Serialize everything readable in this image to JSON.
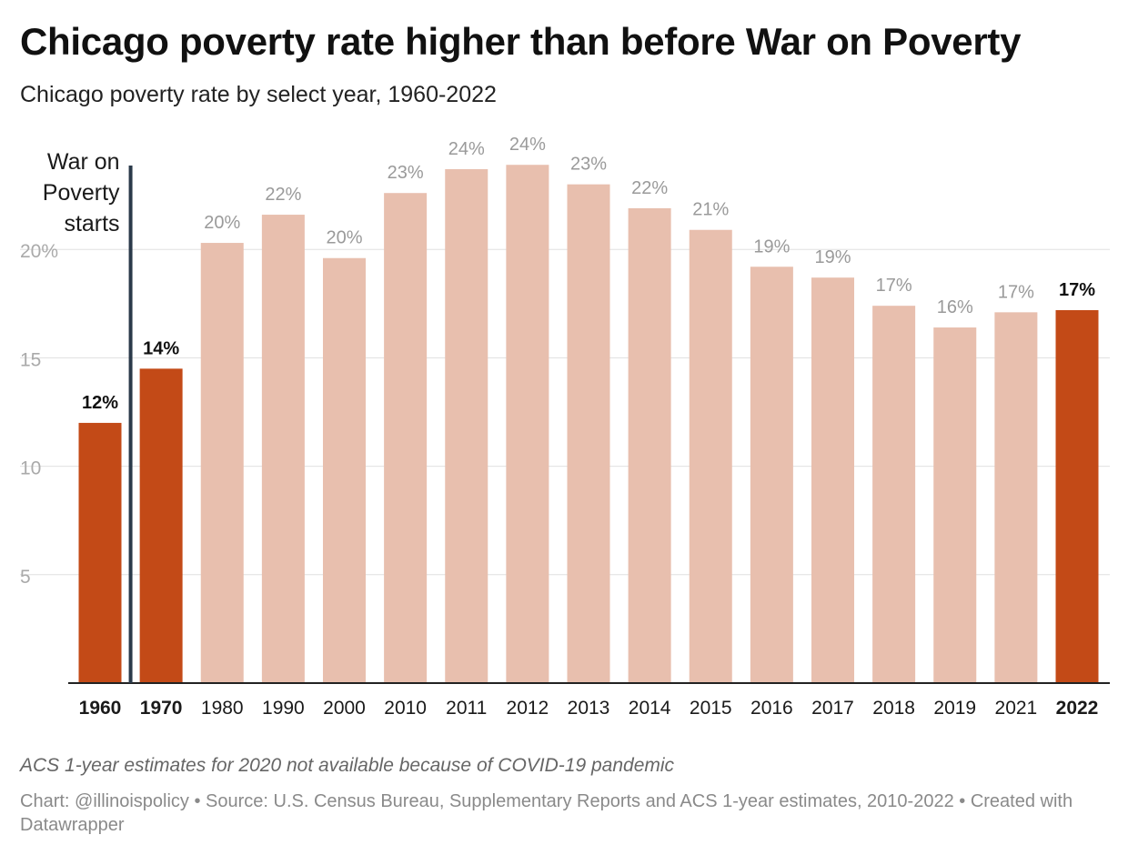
{
  "title": "Chicago poverty rate higher than before War on Poverty",
  "subtitle": "Chicago poverty rate by select year, 1960-2022",
  "note": "ACS 1-year estimates for 2020 not available because of COVID-19 pandemic",
  "source": "Chart: @illinoispolicy • Source: U.S. Census Bureau, Supplementary Reports and ACS 1-year estimates, 2010-2022 • Created with Datawrapper",
  "colors": {
    "highlight": "#c34a17",
    "muted": "#e8bfae",
    "highlight_label": "#111111",
    "muted_label": "#9a9a9a",
    "gridline": "#e0e0e0",
    "baseline": "#222222",
    "annotation_line": "#2b3a4a"
  },
  "chart_data": {
    "type": "bar",
    "categories": [
      "1960",
      "1970",
      "1980",
      "1990",
      "2000",
      "2010",
      "2011",
      "2012",
      "2013",
      "2014",
      "2015",
      "2016",
      "2017",
      "2018",
      "2019",
      "2021",
      "2022"
    ],
    "values": [
      12.0,
      14.5,
      20.3,
      21.6,
      19.6,
      22.6,
      23.7,
      23.9,
      23.0,
      21.9,
      20.9,
      19.2,
      18.7,
      17.4,
      16.4,
      17.1,
      17.2
    ],
    "data_labels": [
      "12%",
      "14%",
      "20%",
      "22%",
      "20%",
      "23%",
      "24%",
      "24%",
      "23%",
      "22%",
      "21%",
      "19%",
      "19%",
      "17%",
      "16%",
      "17%",
      "17%"
    ],
    "highlighted": [
      "1960",
      "1970",
      "2022"
    ],
    "y_ticks": [
      5,
      10,
      15,
      20
    ],
    "y_tick_labels": [
      "5",
      "10",
      "15",
      "20%"
    ],
    "ylim": [
      0,
      25
    ],
    "grid": true,
    "annotation": {
      "text_lines": [
        "War on",
        "Poverty",
        "starts"
      ],
      "between": [
        "1960",
        "1970"
      ]
    }
  }
}
